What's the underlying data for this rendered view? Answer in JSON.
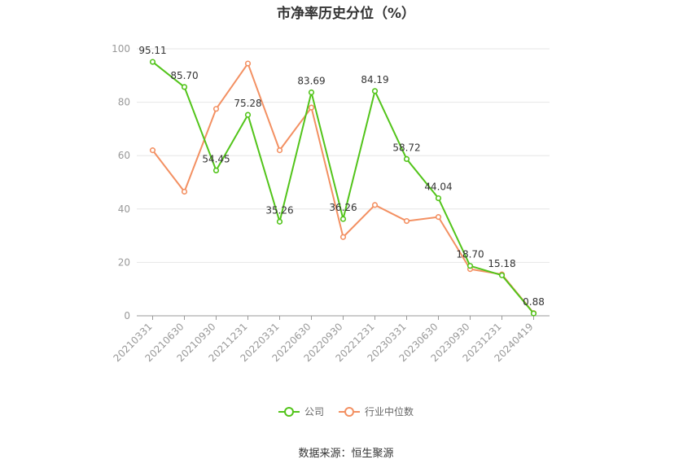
{
  "chart_data": {
    "type": "line",
    "title": "市净率历史分位（%）",
    "categories": [
      "20210331",
      "20210630",
      "20210930",
      "20211231",
      "20220331",
      "20220630",
      "20220930",
      "20221231",
      "20230331",
      "20230630",
      "20230930",
      "20231231",
      "20240419"
    ],
    "series": [
      {
        "name": "公司",
        "color": "#52c41a",
        "values": [
          95.11,
          85.7,
          54.45,
          75.28,
          35.26,
          83.69,
          36.26,
          84.19,
          58.72,
          44.04,
          18.7,
          15.18,
          0.88
        ],
        "labels": [
          "95.11",
          "85.70",
          "54.45",
          "75.28",
          "35.26",
          "83.69",
          "36.26",
          "84.19",
          "58.72",
          "44.04",
          "18.70",
          "15.18",
          "0.88"
        ]
      },
      {
        "name": "行业中位数",
        "color": "#f39062",
        "values": [
          62.0,
          46.5,
          77.5,
          94.5,
          62.0,
          78.0,
          29.5,
          41.5,
          35.5,
          37.0,
          17.5,
          15.5,
          1.0
        ]
      }
    ],
    "ylim": [
      0,
      100
    ],
    "yticks": [
      0,
      20,
      40,
      60,
      80,
      100
    ],
    "grid": true,
    "legend_position": "bottom"
  },
  "source": "数据来源：恒生聚源"
}
